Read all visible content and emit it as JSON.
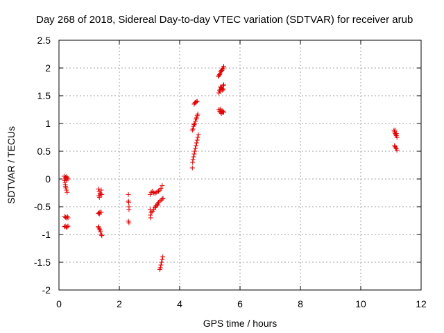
{
  "chart_data": {
    "type": "scatter",
    "title": "Day 268 of 2018, Sidereal Day-to-day VTEC variation (SDTVAR) for receiver arub",
    "xlabel": "GPS time / hours",
    "ylabel": "SDTVAR / TECUs",
    "xlim": [
      0,
      12
    ],
    "ylim": [
      -2,
      2.5
    ],
    "xticks": [
      "0",
      "2",
      "4",
      "6",
      "8",
      "10",
      "12"
    ],
    "yticks": [
      "-2",
      "-1.5",
      "-1",
      "-0.5",
      "0",
      "0.5",
      "1",
      "1.5",
      "2",
      "2.5"
    ],
    "grid": true,
    "marker": "+",
    "marker_color": "#e00000",
    "series": [
      {
        "points": [
          [
            0.17,
            0.05
          ],
          [
            0.18,
            0.0
          ],
          [
            0.19,
            -0.03
          ],
          [
            0.2,
            -0.06
          ],
          [
            0.21,
            -0.1
          ],
          [
            0.22,
            -0.13
          ],
          [
            0.23,
            -0.16
          ],
          [
            0.25,
            -0.2
          ],
          [
            0.27,
            -0.24
          ],
          [
            0.22,
            0.03
          ],
          [
            0.25,
            0.04
          ],
          [
            0.28,
            0.02
          ],
          [
            0.3,
            0.0
          ],
          [
            0.24,
            -0.02
          ],
          [
            0.18,
            -0.68
          ],
          [
            0.22,
            -0.69
          ],
          [
            0.25,
            -0.7
          ],
          [
            0.28,
            -0.68
          ],
          [
            0.3,
            -0.7
          ],
          [
            0.18,
            -0.86
          ],
          [
            0.21,
            -0.85
          ],
          [
            0.24,
            -0.87
          ],
          [
            0.27,
            -0.86
          ],
          [
            0.3,
            -0.85
          ],
          [
            1.3,
            -0.18
          ],
          [
            1.33,
            -0.22
          ],
          [
            1.36,
            -0.26
          ],
          [
            1.4,
            -0.2
          ],
          [
            1.38,
            -0.28
          ],
          [
            1.32,
            -0.3
          ],
          [
            1.34,
            -0.33
          ],
          [
            1.42,
            -0.28
          ],
          [
            1.3,
            -0.62
          ],
          [
            1.33,
            -0.61
          ],
          [
            1.36,
            -0.6
          ],
          [
            1.4,
            -0.6
          ],
          [
            1.35,
            -0.63
          ],
          [
            1.3,
            -0.86
          ],
          [
            1.32,
            -0.88
          ],
          [
            1.34,
            -0.9
          ],
          [
            1.36,
            -0.92
          ],
          [
            1.38,
            -0.95
          ],
          [
            1.4,
            -1.0
          ],
          [
            1.42,
            -1.02
          ],
          [
            2.3,
            -0.28
          ],
          [
            2.3,
            -0.4
          ],
          [
            2.31,
            -0.42
          ],
          [
            2.32,
            -0.5
          ],
          [
            2.32,
            -0.55
          ],
          [
            2.3,
            -0.76
          ],
          [
            2.32,
            -0.79
          ],
          [
            3.02,
            -0.28
          ],
          [
            3.06,
            -0.24
          ],
          [
            3.1,
            -0.22
          ],
          [
            3.14,
            -0.25
          ],
          [
            3.18,
            -0.26
          ],
          [
            3.22,
            -0.24
          ],
          [
            3.26,
            -0.23
          ],
          [
            3.3,
            -0.22
          ],
          [
            3.34,
            -0.2
          ],
          [
            3.38,
            -0.17
          ],
          [
            3.42,
            -0.12
          ],
          [
            3.02,
            -0.55
          ],
          [
            3.03,
            -0.65
          ],
          [
            3.04,
            -0.7
          ],
          [
            3.06,
            -0.6
          ],
          [
            3.1,
            -0.58
          ],
          [
            3.14,
            -0.55
          ],
          [
            3.18,
            -0.52
          ],
          [
            3.22,
            -0.48
          ],
          [
            3.26,
            -0.45
          ],
          [
            3.3,
            -0.42
          ],
          [
            3.34,
            -0.4
          ],
          [
            3.38,
            -0.38
          ],
          [
            3.42,
            -0.36
          ],
          [
            3.45,
            -0.35
          ],
          [
            3.2,
            -0.5
          ],
          [
            3.28,
            -0.47
          ],
          [
            3.34,
            -1.63
          ],
          [
            3.36,
            -1.6
          ],
          [
            3.38,
            -1.55
          ],
          [
            3.4,
            -1.5
          ],
          [
            3.42,
            -1.45
          ],
          [
            3.44,
            -1.4
          ],
          [
            4.42,
            0.2
          ],
          [
            4.43,
            0.3
          ],
          [
            4.44,
            0.35
          ],
          [
            4.46,
            0.4
          ],
          [
            4.48,
            0.45
          ],
          [
            4.5,
            0.5
          ],
          [
            4.52,
            0.55
          ],
          [
            4.54,
            0.6
          ],
          [
            4.56,
            0.65
          ],
          [
            4.58,
            0.7
          ],
          [
            4.6,
            0.75
          ],
          [
            4.62,
            0.8
          ],
          [
            4.42,
            0.88
          ],
          [
            4.44,
            0.9
          ],
          [
            4.46,
            0.95
          ],
          [
            4.48,
            0.98
          ],
          [
            4.5,
            1.0
          ],
          [
            4.52,
            1.04
          ],
          [
            4.54,
            1.08
          ],
          [
            4.56,
            1.1
          ],
          [
            4.58,
            1.14
          ],
          [
            4.6,
            1.17
          ],
          [
            4.48,
            1.35
          ],
          [
            4.5,
            1.37
          ],
          [
            4.52,
            1.38
          ],
          [
            4.55,
            1.39
          ],
          [
            4.58,
            1.4
          ],
          [
            5.28,
            1.85
          ],
          [
            5.3,
            1.86
          ],
          [
            5.32,
            1.88
          ],
          [
            5.34,
            1.9
          ],
          [
            5.36,
            1.93
          ],
          [
            5.38,
            1.95
          ],
          [
            5.4,
            1.96
          ],
          [
            5.42,
            1.98
          ],
          [
            5.44,
            2.0
          ],
          [
            5.46,
            2.03
          ],
          [
            5.3,
            1.55
          ],
          [
            5.32,
            1.6
          ],
          [
            5.34,
            1.58
          ],
          [
            5.36,
            1.62
          ],
          [
            5.38,
            1.65
          ],
          [
            5.4,
            1.63
          ],
          [
            5.42,
            1.6
          ],
          [
            5.44,
            1.68
          ],
          [
            5.46,
            1.7
          ],
          [
            5.45,
            1.62
          ],
          [
            5.35,
            1.66
          ],
          [
            5.3,
            1.25
          ],
          [
            5.33,
            1.22
          ],
          [
            5.36,
            1.2
          ],
          [
            5.38,
            1.18
          ],
          [
            5.4,
            1.23
          ],
          [
            5.42,
            1.2
          ],
          [
            5.44,
            1.22
          ],
          [
            5.46,
            1.2
          ],
          [
            5.34,
            1.26
          ],
          [
            11.1,
            0.88
          ],
          [
            11.12,
            0.85
          ],
          [
            11.14,
            0.82
          ],
          [
            11.16,
            0.8
          ],
          [
            11.18,
            0.78
          ],
          [
            11.2,
            0.75
          ],
          [
            11.14,
            0.88
          ],
          [
            11.18,
            0.82
          ],
          [
            11.12,
            0.6
          ],
          [
            11.14,
            0.58
          ],
          [
            11.16,
            0.56
          ],
          [
            11.18,
            0.55
          ],
          [
            11.2,
            0.52
          ]
        ]
      }
    ]
  }
}
